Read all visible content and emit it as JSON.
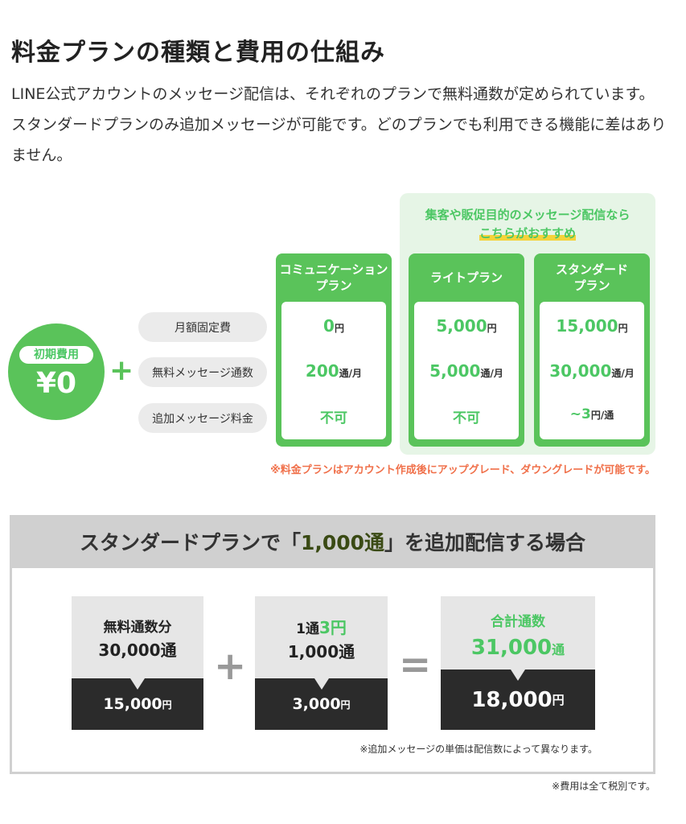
{
  "title": "料金プランの種類と費用の仕組み",
  "description": "LINE公式アカウントのメッセージ配信は、それぞれのプランで無料通数が定められています。スタンダードプランのみ追加メッセージが可能です。どのプランでも利用できる機能に差はありません。",
  "recommend": {
    "line1": "集客や販促目的のメッセージ配信なら",
    "line2": "こちらがおすすめ"
  },
  "initial": {
    "label": "初期費用",
    "amount": "¥0",
    "plus": "+"
  },
  "row_labels": [
    "月額固定費",
    "無料メッセージ通数",
    "追加メッセージ料金"
  ],
  "plans": [
    {
      "name": "コミュニケーション\nプラン",
      "fee": "0",
      "fee_unit": "円",
      "free": "200",
      "free_unit": "通/月",
      "extra": "不可",
      "extra_unit": ""
    },
    {
      "name": "ライトプラン",
      "fee": "5,000",
      "fee_unit": "円",
      "free": "5,000",
      "free_unit": "通/月",
      "extra": "不可",
      "extra_unit": ""
    },
    {
      "name": "スタンダード\nプラン",
      "fee": "15,000",
      "fee_unit": "円",
      "free": "30,000",
      "free_unit": "通/月",
      "extra": "~3",
      "extra_unit": "円/通"
    }
  ],
  "plan_note": "※料金プランはアカウント作成後にアップグレード、ダウングレードが可能です。",
  "example": {
    "title_pre": "スタンダードプランで「",
    "title_num": "1,000通",
    "title_post": "」を追加配信する場合",
    "card1": {
      "line1": "無料通数分",
      "line2": "30,000通",
      "price": "15,000",
      "unit": "円"
    },
    "plus": "+",
    "card2": {
      "line1_pre": "1通",
      "line1_num": "3円",
      "line2": "1,000通",
      "price": "3,000",
      "unit": "円"
    },
    "equals": "=",
    "card3": {
      "line1": "合計通数",
      "line2_num": "31,000",
      "line2_unit": "通",
      "price": "18,000",
      "unit": "円"
    },
    "note": "※追加メッセージの単価は配信数によって異なります。"
  },
  "footer_note": "※費用は全て税別です。",
  "colors": {
    "green": "#4cc764",
    "light_green": "#e6f5e6",
    "note_red": "#f0704a",
    "dark": "#2b2b2b"
  }
}
